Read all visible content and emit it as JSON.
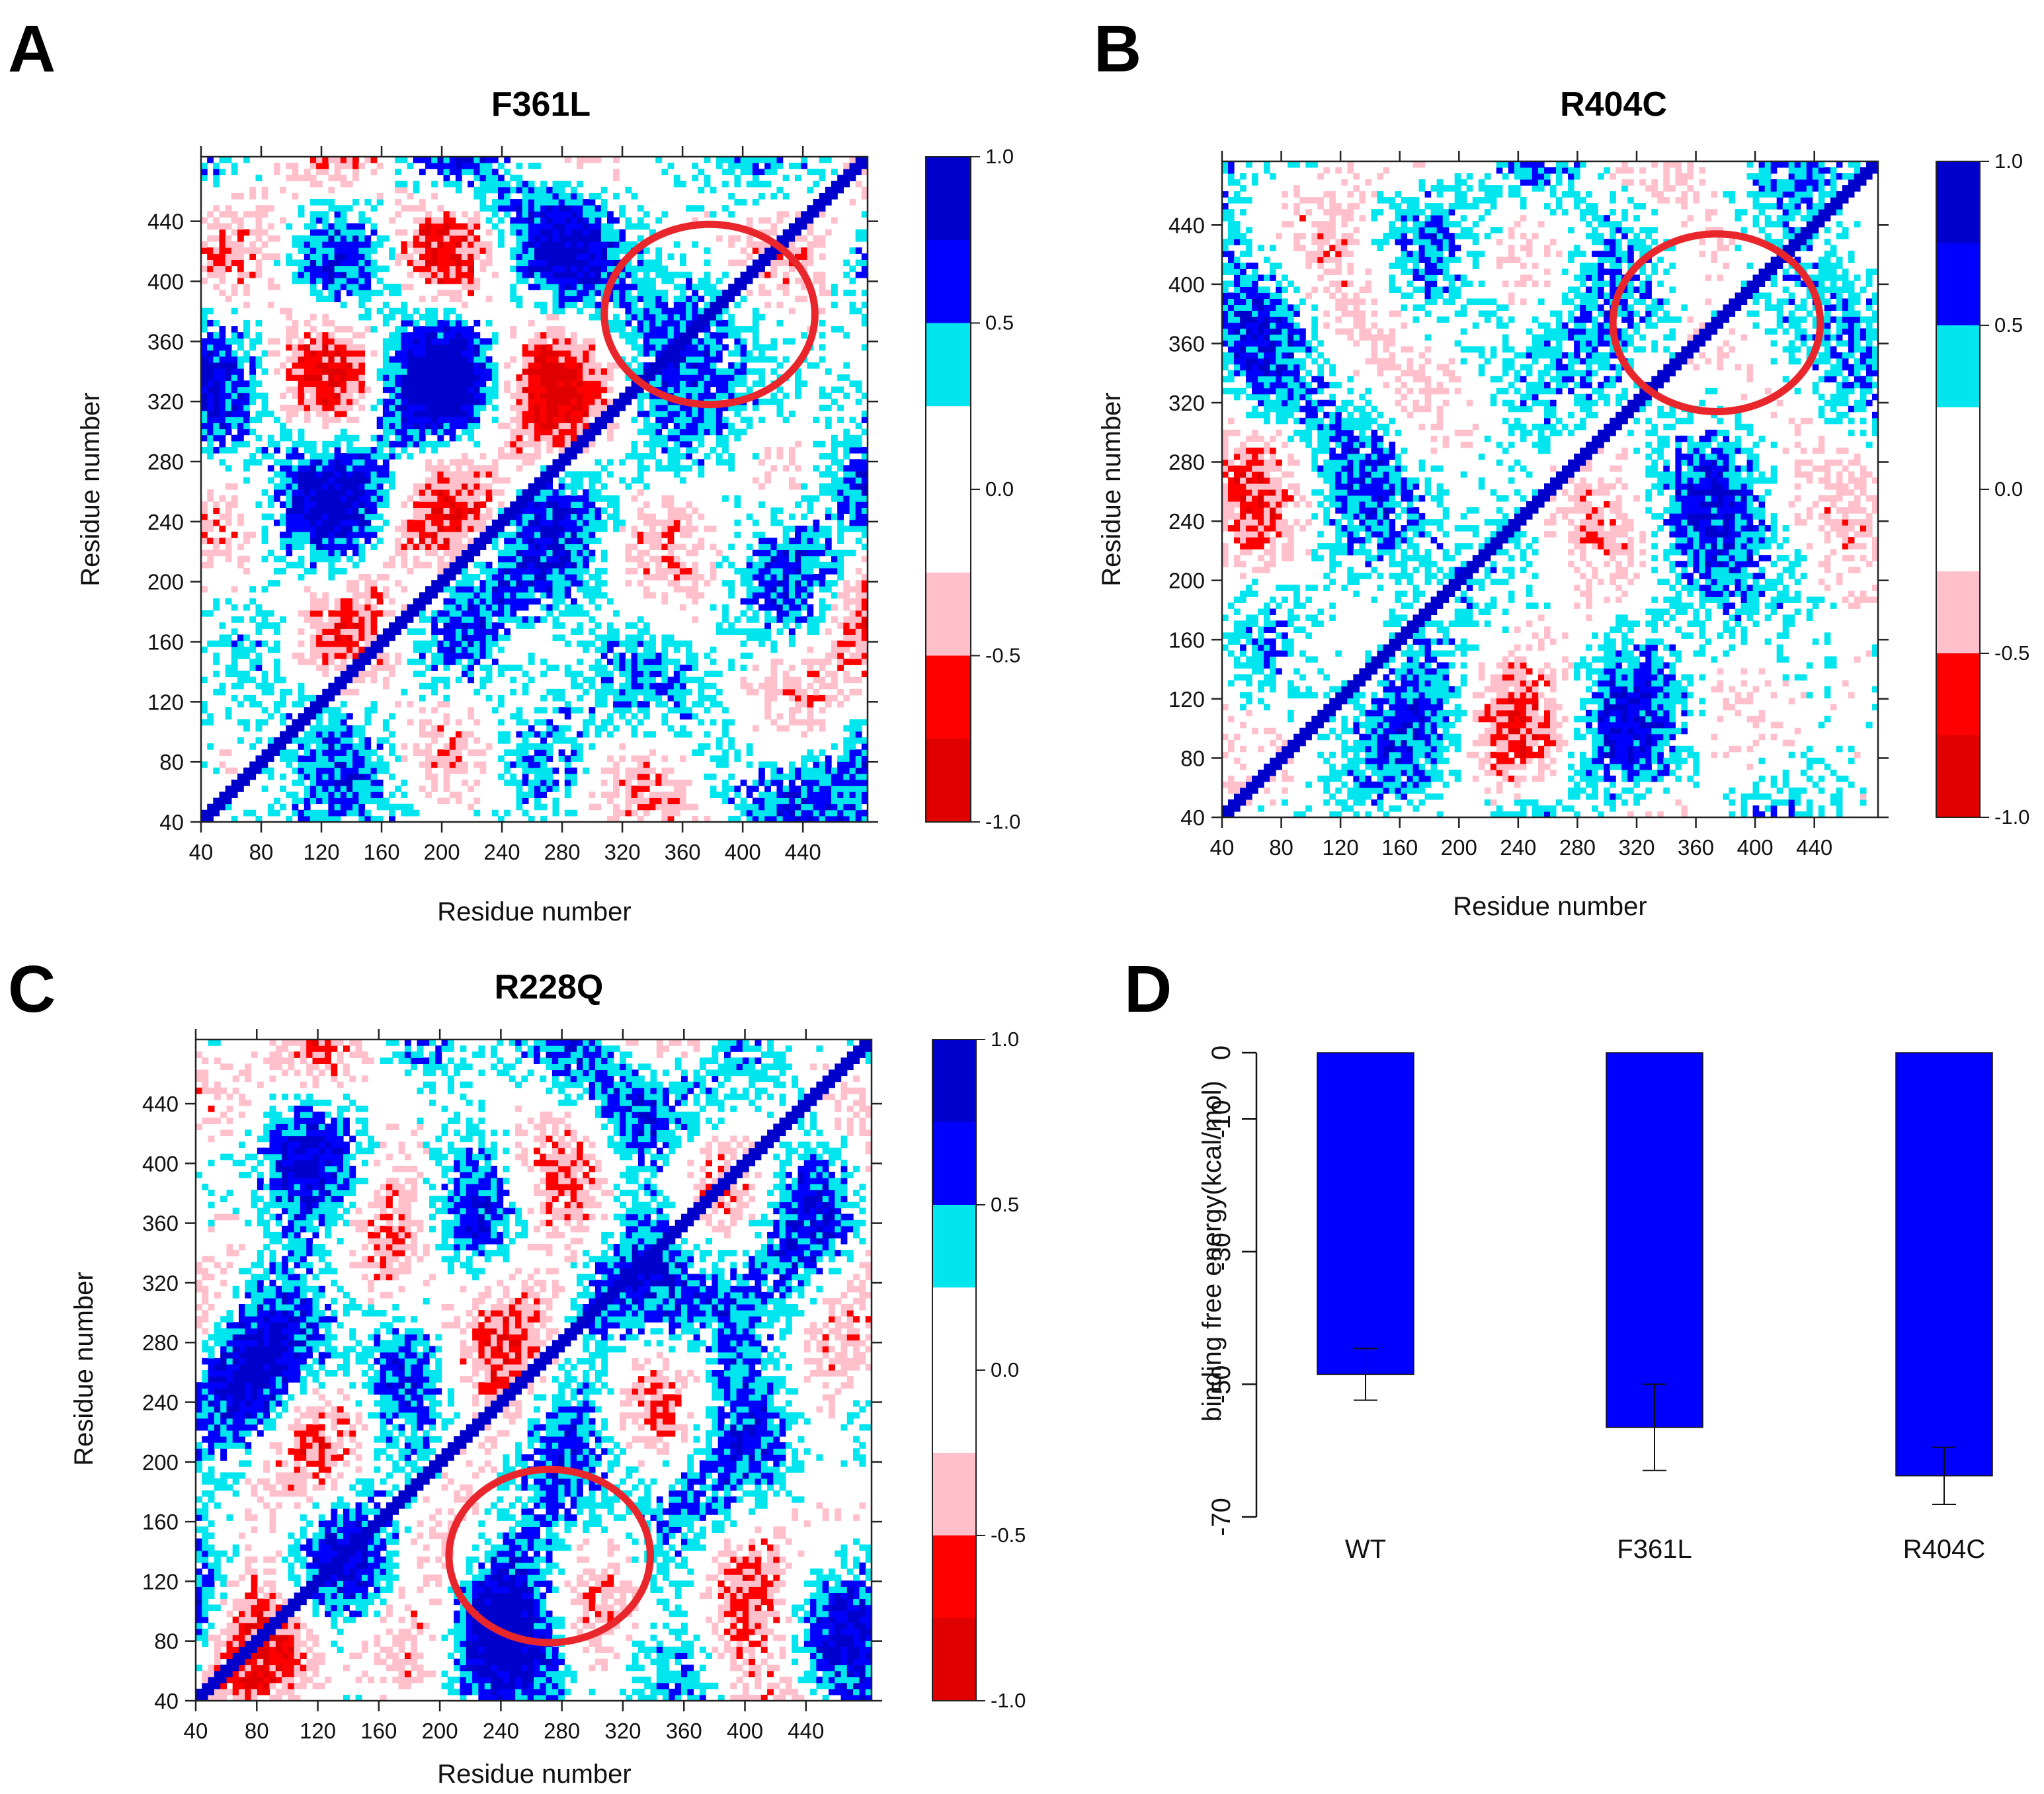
{
  "figure": {
    "panels": [
      {
        "letter": "A",
        "title": "F361L"
      },
      {
        "letter": "B",
        "title": "R404C"
      },
      {
        "letter": "C",
        "title": "R228Q"
      },
      {
        "letter": "D",
        "title": ""
      }
    ]
  },
  "colors": {
    "strong_pos": "#0000cd",
    "pos": "#0000ff",
    "weak_pos": "#00e5ee",
    "neutral": "#ffffff",
    "weak_neg": "#ffc0cb",
    "neg": "#ff0000",
    "strong_neg": "#e00000",
    "circle": "#e8262b",
    "bar": "#0000ff"
  },
  "chart_data": [
    {
      "type": "heatmap",
      "panel": "A",
      "title": "F361L",
      "xlabel": "Residue number",
      "ylabel": "Residue number",
      "xlim": [
        40,
        483
      ],
      "ylim": [
        40,
        483
      ],
      "xticks": [
        "40",
        "80",
        "120",
        "160",
        "200",
        "240",
        "280",
        "320",
        "360",
        "400",
        "440"
      ],
      "yticks": [
        "40",
        "80",
        "120",
        "160",
        "200",
        "240",
        "280",
        "320",
        "360",
        "400",
        "440"
      ],
      "colorbar": {
        "range": [
          -1.0,
          1.0
        ],
        "labels": [
          "1.0",
          "0.5",
          "0.0",
          "-0.5",
          "-1.0"
        ]
      },
      "highlight": {
        "shape": "ellipse",
        "center": [
          378,
          378
        ],
        "radius_residues": [
          70,
          60
        ]
      },
      "seed": 11,
      "hotspot": [
        380,
        380
      ]
    },
    {
      "type": "heatmap",
      "panel": "B",
      "title": "R404C",
      "xlabel": "Residue number",
      "ylabel": "Residue number",
      "xlim": [
        40,
        483
      ],
      "ylim": [
        40,
        483
      ],
      "xticks": [
        "40",
        "80",
        "120",
        "160",
        "200",
        "240",
        "280",
        "320",
        "360",
        "400",
        "440"
      ],
      "yticks": [
        "40",
        "80",
        "120",
        "160",
        "200",
        "240",
        "280",
        "320",
        "360",
        "400",
        "440"
      ],
      "colorbar": {
        "range": [
          -1.0,
          1.0
        ],
        "labels": [
          "1.0",
          "0.5",
          "0.0",
          "-0.5",
          "-1.0"
        ]
      },
      "highlight": {
        "shape": "ellipse",
        "center": [
          374,
          374
        ],
        "radius_residues": [
          70,
          60
        ]
      },
      "seed": 27,
      "hotspot": [
        375,
        375
      ]
    },
    {
      "type": "heatmap",
      "panel": "C",
      "title": "R228Q",
      "xlabel": "Residue number",
      "ylabel": "Residue number",
      "xlim": [
        40,
        483
      ],
      "ylim": [
        40,
        483
      ],
      "xticks": [
        "40",
        "80",
        "120",
        "160",
        "200",
        "240",
        "280",
        "320",
        "360",
        "400",
        "440"
      ],
      "yticks": [
        "40",
        "80",
        "120",
        "160",
        "200",
        "240",
        "280",
        "320",
        "360",
        "400",
        "440"
      ],
      "colorbar": {
        "range": [
          -1.0,
          1.0
        ],
        "labels": [
          "1.0",
          "0.5",
          "0.0",
          "-0.5",
          "-1.0"
        ]
      },
      "highlight": {
        "shape": "ellipse",
        "center": [
          272,
          137
        ],
        "radius_residues": [
          66,
          58
        ]
      },
      "seed": 43,
      "hotspot": [
        265,
        140
      ]
    },
    {
      "type": "bar",
      "panel": "D",
      "title": "",
      "xlabel": "",
      "ylabel": "binding free energy(kcal/mol)",
      "categories": [
        "WT",
        "F361L",
        "R404C"
      ],
      "values": [
        -48.5,
        -56.5,
        -63.8
      ],
      "errors": [
        3.9,
        6.5,
        4.3
      ],
      "ylim": [
        -70,
        0
      ],
      "yticks": [
        "0",
        "-10",
        "-30",
        "-50",
        "-70"
      ],
      "ytick_values": [
        0,
        -10,
        -30,
        -50,
        -70
      ]
    }
  ]
}
